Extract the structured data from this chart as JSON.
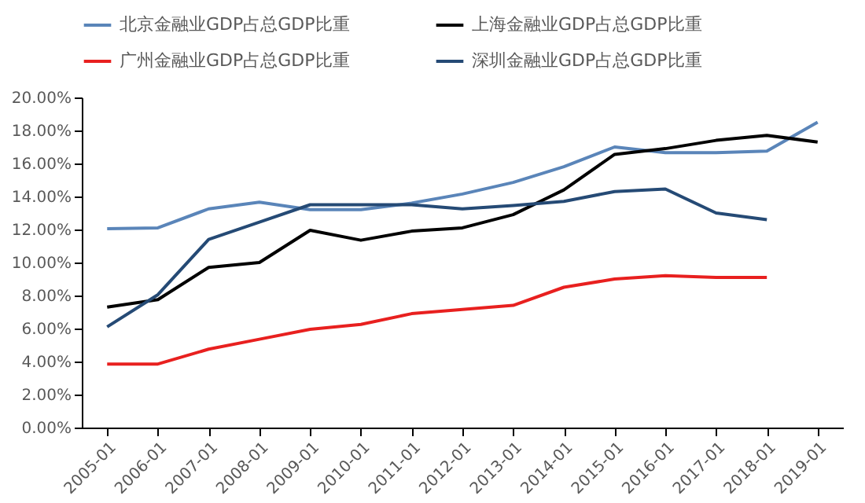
{
  "chart_data": {
    "type": "line",
    "categories": [
      "2005-01",
      "2006-01",
      "2007-01",
      "2008-01",
      "2009-01",
      "2010-01",
      "2011-01",
      "2012-01",
      "2013-01",
      "2014-01",
      "2015-01",
      "2016-01",
      "2017-01",
      "2018-01",
      "2019-01"
    ],
    "series": [
      {
        "name": "北京金融业GDP占总GDP比重",
        "color": "#5a85b9",
        "values": [
          12.05,
          12.1,
          13.25,
          13.65,
          13.2,
          13.2,
          13.6,
          14.15,
          14.85,
          15.8,
          17.0,
          16.65,
          16.65,
          16.75,
          18.5
        ]
      },
      {
        "name": "上海金融业GDP占总GDP比重",
        "color": "#000000",
        "values": [
          7.3,
          7.75,
          9.7,
          10.0,
          11.95,
          11.35,
          11.9,
          12.1,
          12.9,
          14.4,
          16.55,
          16.9,
          17.4,
          17.7,
          17.3
        ]
      },
      {
        "name": "广州金融业GDP占总GDP比重",
        "color": "#e8201f",
        "values": [
          3.85,
          3.85,
          4.75,
          5.35,
          5.95,
          6.25,
          6.9,
          7.15,
          7.4,
          8.5,
          9.0,
          9.2,
          9.1,
          9.1,
          null
        ]
      },
      {
        "name": "深圳金融业GDP占总GDP比重",
        "color": "#254a75",
        "values": [
          6.1,
          8.05,
          11.4,
          12.45,
          13.5,
          13.5,
          13.5,
          13.25,
          13.45,
          13.7,
          14.3,
          14.45,
          13.0,
          12.6,
          null
        ]
      }
    ],
    "ylim": [
      0,
      20
    ],
    "yticks": [
      {
        "value": 0,
        "label": "0.00%"
      },
      {
        "value": 2,
        "label": "2.00%"
      },
      {
        "value": 4,
        "label": "4.00%"
      },
      {
        "value": 6,
        "label": "6.00%"
      },
      {
        "value": 8,
        "label": "8.00%"
      },
      {
        "value": 10,
        "label": "10.00%"
      },
      {
        "value": 12,
        "label": "12.00%"
      },
      {
        "value": 14,
        "label": "14.00%"
      },
      {
        "value": 16,
        "label": "16.00%"
      },
      {
        "value": 18,
        "label": "18.00%"
      },
      {
        "value": 20,
        "label": "20.00%"
      }
    ],
    "grid": false,
    "legend": "top",
    "marker": "none",
    "line_style": "solid"
  }
}
